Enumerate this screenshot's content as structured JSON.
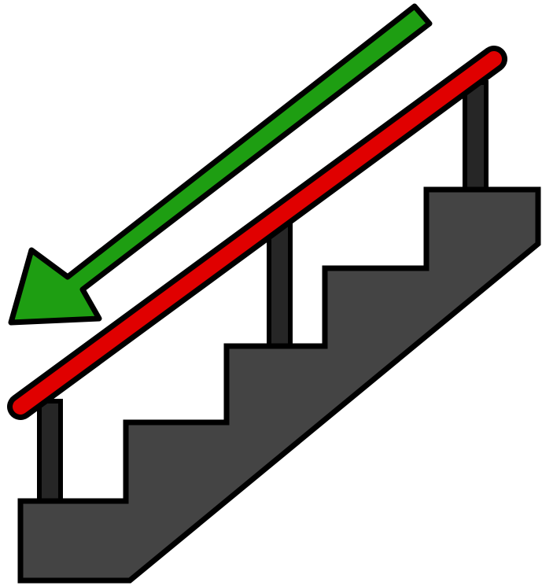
{
  "illustration": {
    "subject": "stairs-icon",
    "arrow_icon": "arrow-down-left-icon",
    "handrail_icon": "handrail-icon",
    "colors": {
      "background": "#ffffff",
      "outline": "#000000",
      "stairs_fill": "#444444",
      "post_fill": "#262626",
      "handrail": "#e00000",
      "arrow": "#1e9e12"
    }
  }
}
